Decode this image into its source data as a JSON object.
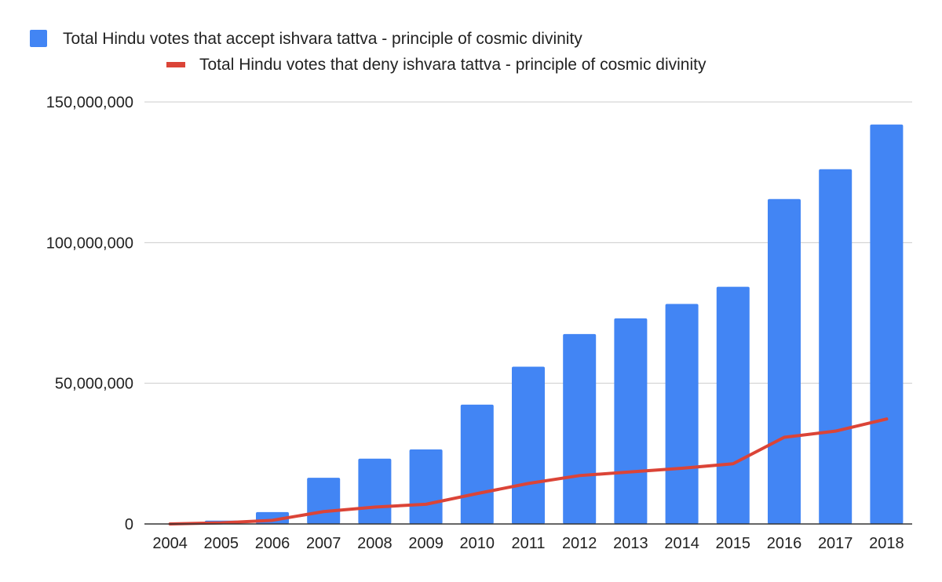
{
  "chart_data": {
    "type": "bar",
    "categories": [
      "2004",
      "2005",
      "2006",
      "2007",
      "2008",
      "2009",
      "2010",
      "2011",
      "2012",
      "2013",
      "2014",
      "2015",
      "2016",
      "2017",
      "2018"
    ],
    "series": [
      {
        "name": "Total Hindu votes that accept ishvara tattva - principle of cosmic divinity",
        "type": "bar",
        "color": "#4285f4",
        "values": [
          0,
          1200000,
          4200000,
          16400000,
          23200000,
          26500000,
          42400000,
          55900000,
          67500000,
          73100000,
          78200000,
          84300000,
          115500000,
          126100000,
          142000000
        ]
      },
      {
        "name": "Total Hindu votes that deny ishvara tattva - principle of cosmic divinity",
        "type": "line",
        "color": "#db4437",
        "values": [
          0,
          400000,
          1300000,
          4400000,
          6000000,
          7000000,
          10800000,
          14400000,
          17200000,
          18500000,
          19800000,
          21400000,
          30800000,
          33000000,
          37300000
        ]
      }
    ],
    "ylim": [
      0,
      150000000
    ],
    "yticks": [
      0,
      50000000,
      100000000,
      150000000
    ],
    "ytick_labels": [
      "0",
      "50,000,000",
      "100,000,000",
      "150,000,000"
    ],
    "grid": true,
    "legend_position": "top",
    "title": "",
    "xlabel": "",
    "ylabel": ""
  }
}
